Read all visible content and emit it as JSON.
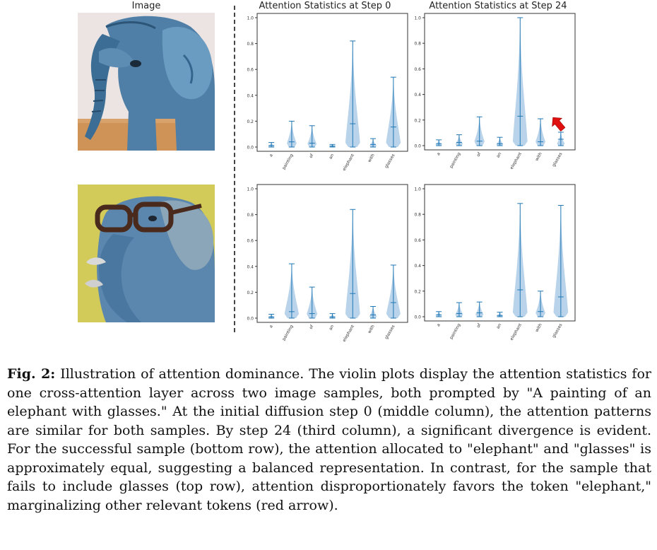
{
  "figure": {
    "column_titles": {
      "image": "Image",
      "step0": "Attention Statistics at Step 0",
      "step24": "Attention Statistics at Step 24"
    },
    "violin_color": "#1f77b4",
    "fill_color": "#a8c8e6",
    "arrow_color": "#e01010"
  },
  "chart_data": [
    {
      "type": "violin",
      "row": "top",
      "step": 0,
      "categories": [
        "a",
        "painting",
        "of",
        "an",
        "elephant",
        "with",
        "glasses"
      ],
      "ylim": [
        0,
        1.0
      ],
      "yticks": [
        "0.0",
        "0.2",
        "0.4",
        "0.6",
        "0.8",
        "1.0"
      ],
      "max": [
        0.035,
        0.2,
        0.165,
        0.02,
        0.82,
        0.065,
        0.54
      ],
      "median": [
        0.012,
        0.04,
        0.03,
        0.008,
        0.18,
        0.02,
        0.155
      ]
    },
    {
      "type": "violin",
      "row": "top",
      "step": 24,
      "categories": [
        "a",
        "painting",
        "of",
        "an",
        "elephant",
        "with",
        "glasses"
      ],
      "ylim": [
        0,
        1.0
      ],
      "yticks": [
        "0.0",
        "0.2",
        "0.4",
        "0.6",
        "0.8",
        "1.0"
      ],
      "max": [
        0.045,
        0.085,
        0.225,
        0.065,
        1.0,
        0.21,
        0.105
      ],
      "median": [
        0.015,
        0.025,
        0.035,
        0.015,
        0.23,
        0.03,
        0.05
      ],
      "annotation": "red arrow pointing at glasses"
    },
    {
      "type": "violin",
      "row": "bottom",
      "step": 0,
      "categories": [
        "a",
        "painting",
        "of",
        "an",
        "elephant",
        "with",
        "glasses"
      ],
      "ylim": [
        0,
        1.0
      ],
      "yticks": [
        "0.0",
        "0.2",
        "0.4",
        "0.6",
        "0.8",
        "1.0"
      ],
      "max": [
        0.03,
        0.42,
        0.24,
        0.035,
        0.84,
        0.09,
        0.41
      ],
      "median": [
        0.01,
        0.05,
        0.035,
        0.01,
        0.19,
        0.025,
        0.12
      ]
    },
    {
      "type": "violin",
      "row": "bottom",
      "step": 24,
      "categories": [
        "a",
        "painting",
        "of",
        "an",
        "elephant",
        "with",
        "glasses"
      ],
      "ylim": [
        0,
        1.0
      ],
      "yticks": [
        "0.0",
        "0.2",
        "0.4",
        "0.6",
        "0.8",
        "1.0"
      ],
      "max": [
        0.04,
        0.11,
        0.115,
        0.035,
        0.885,
        0.2,
        0.87
      ],
      "median": [
        0.015,
        0.025,
        0.03,
        0.01,
        0.21,
        0.04,
        0.155
      ]
    }
  ],
  "caption": {
    "label": "Fig. 2:",
    "text": "Illustration of attention dominance. The violin plots display the attention statistics for one cross-attention layer across two image samples, both prompted by \"A painting of an elephant with glasses.\" At the initial diffusion step 0 (middle column), the attention patterns are similar for both samples. By step 24 (third column), a significant divergence is evident. For the successful sample (bottom row), the attention allocated to \"elephant\" and \"glasses\" is approximately equal, suggesting a balanced representation. In contrast, for the sample that fails to include glasses (top row), attention disproportionately favors the token \"elephant,\" marginalizing other relevant tokens (red arrow)."
  }
}
